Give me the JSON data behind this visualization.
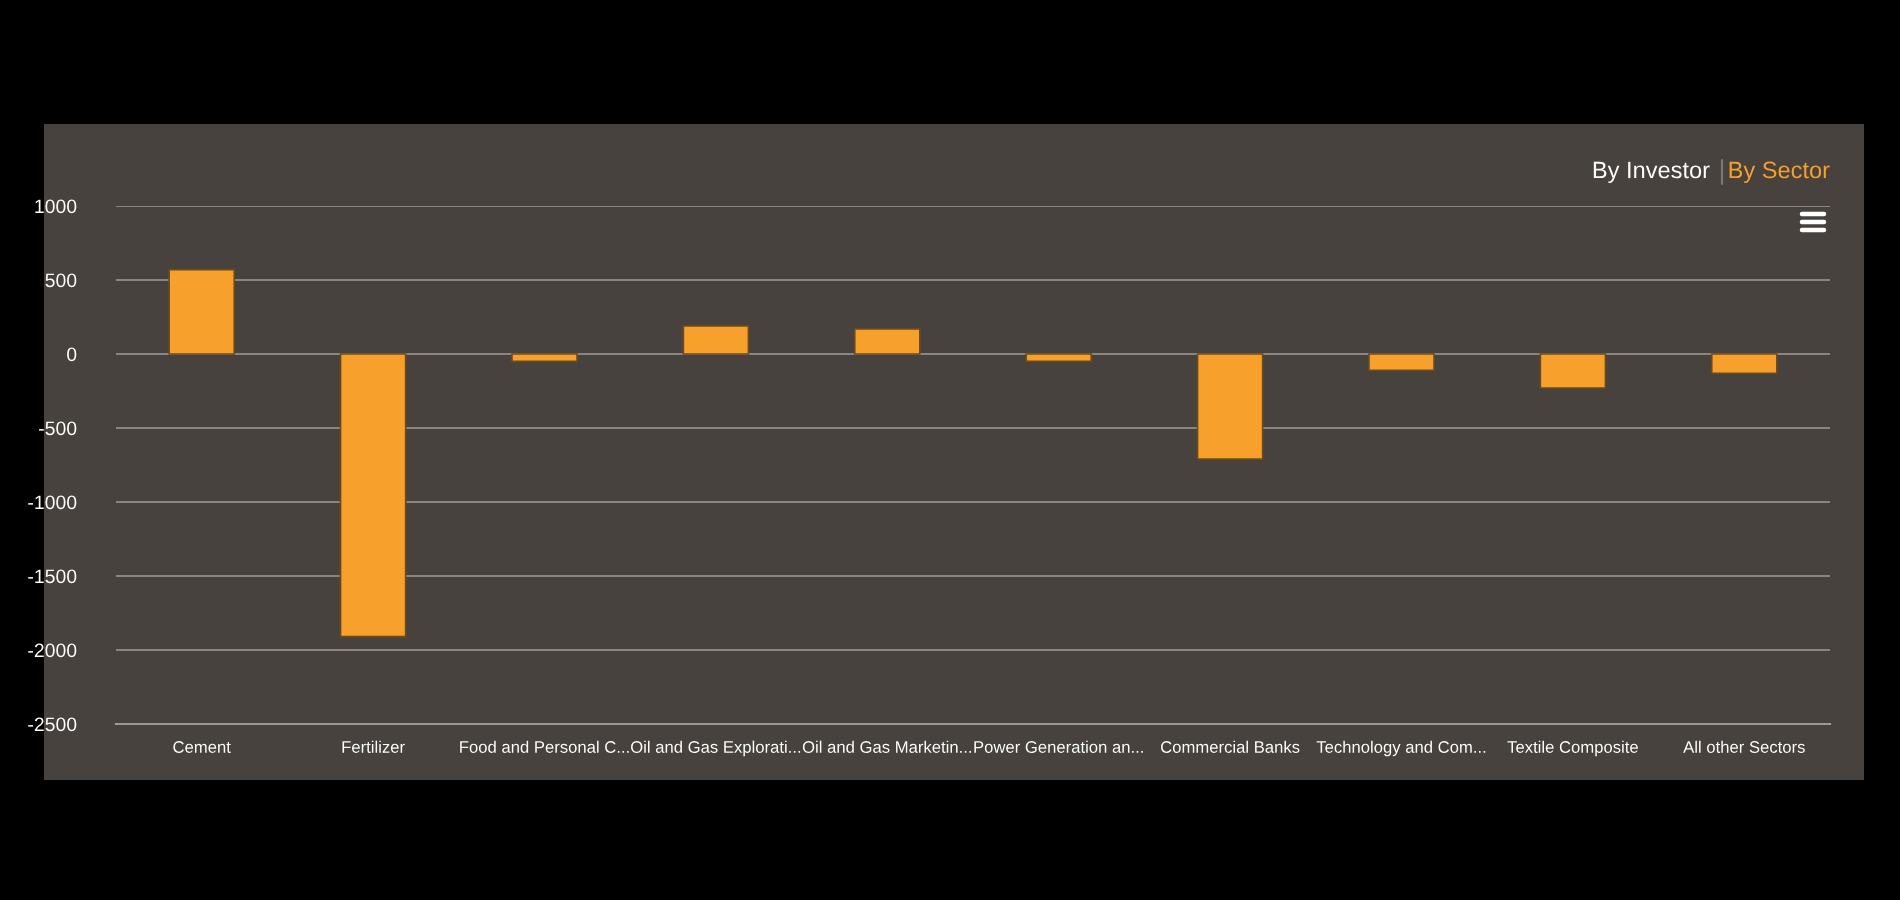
{
  "chart_data": {
    "type": "bar",
    "categories": [
      "Cement",
      "Fertilizer",
      "Food and Personal C...",
      "Oil and Gas Explorati...",
      "Oil and Gas Marketin...",
      "Power Generation an...",
      "Commercial Banks",
      "Technology and Com...",
      "Textile Composite",
      "All other Sectors"
    ],
    "values": [
      570,
      -1910,
      -50,
      190,
      170,
      -50,
      -710,
      -110,
      -230,
      -130
    ],
    "color": "#f7a02c",
    "ylim": [
      -2500,
      1000
    ],
    "yticks": [
      -2500,
      -2000,
      -1500,
      -1000,
      -500,
      0,
      500,
      1000
    ],
    "grid": "y",
    "annotations": [
      "By Investor",
      "By Sector"
    ]
  }
}
